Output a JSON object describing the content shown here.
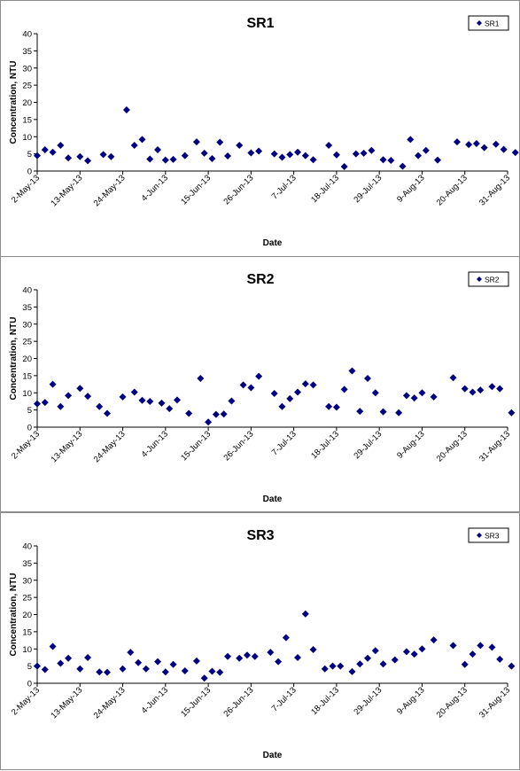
{
  "chart_data": [
    {
      "type": "scatter",
      "title": "SR1",
      "xlabel": "Date",
      "ylabel": "Concentration, NTU",
      "ylim": [
        0,
        40
      ],
      "yticks": [
        "0",
        "5",
        "10",
        "15",
        "20",
        "25",
        "30",
        "35",
        "40"
      ],
      "xlim": [
        "2013-05-02",
        "2013-08-31"
      ],
      "xtick_labels": [
        "2-May-13",
        "13-May-13",
        "24-May-13",
        "4-Jun-13",
        "15-Jun-13",
        "26-Jun-13",
        "7-Jul-13",
        "18-Jul-13",
        "29-Jul-13",
        "9-Aug-13",
        "20-Aug-13",
        "31-Aug-13"
      ],
      "grid": false,
      "legend": "top-right",
      "marker_color": "#000080",
      "series": [
        {
          "name": "SR1",
          "x": [
            "2013-05-02",
            "2013-05-04",
            "2013-05-06",
            "2013-05-08",
            "2013-05-10",
            "2013-05-13",
            "2013-05-15",
            "2013-05-19",
            "2013-05-21",
            "2013-05-25",
            "2013-05-27",
            "2013-05-29",
            "2013-05-31",
            "2013-06-02",
            "2013-06-04",
            "2013-06-06",
            "2013-06-09",
            "2013-06-12",
            "2013-06-14",
            "2013-06-16",
            "2013-06-18",
            "2013-06-20",
            "2013-06-23",
            "2013-06-26",
            "2013-06-28",
            "2013-07-02",
            "2013-07-04",
            "2013-07-06",
            "2013-07-08",
            "2013-07-10",
            "2013-07-12",
            "2013-07-16",
            "2013-07-18",
            "2013-07-20",
            "2013-07-23",
            "2013-07-25",
            "2013-07-27",
            "2013-07-30",
            "2013-08-01",
            "2013-08-04",
            "2013-08-06",
            "2013-08-08",
            "2013-08-10",
            "2013-08-13",
            "2013-08-18",
            "2013-08-21",
            "2013-08-23",
            "2013-08-25",
            "2013-08-28",
            "2013-08-30",
            "2013-09-02"
          ],
          "y": [
            4.5,
            6.2,
            5.5,
            7.5,
            3.8,
            4.2,
            3.0,
            4.8,
            4.2,
            17.8,
            7.5,
            9.2,
            3.5,
            6.2,
            3.2,
            3.4,
            4.5,
            8.5,
            5.2,
            3.6,
            8.4,
            4.4,
            7.5,
            5.3,
            5.8,
            5.0,
            4.0,
            4.8,
            5.5,
            4.5,
            3.3,
            7.5,
            4.7,
            1.3,
            5.0,
            5.2,
            6.0,
            3.3,
            3.1,
            1.4,
            9.2,
            4.5,
            6.0,
            3.2,
            8.5,
            7.7,
            8.0,
            6.8,
            7.8,
            6.3,
            5.4
          ]
        }
      ]
    },
    {
      "type": "scatter",
      "title": "SR2",
      "xlabel": "Date",
      "ylabel": "Concentration, NTU",
      "ylim": [
        0,
        40
      ],
      "yticks": [
        "0",
        "5",
        "10",
        "15",
        "20",
        "25",
        "30",
        "35",
        "40"
      ],
      "xlim": [
        "2013-05-02",
        "2013-08-31"
      ],
      "xtick_labels": [
        "2-May-13",
        "13-May-13",
        "24-May-13",
        "4-Jun-13",
        "15-Jun-13",
        "26-Jun-13",
        "7-Jul-13",
        "18-Jul-13",
        "29-Jul-13",
        "9-Aug-13",
        "20-Aug-13",
        "31-Aug-13"
      ],
      "grid": false,
      "legend": "top-right",
      "marker_color": "#000080",
      "series": [
        {
          "name": "SR2",
          "x": [
            "2013-05-02",
            "2013-05-04",
            "2013-05-06",
            "2013-05-08",
            "2013-05-10",
            "2013-05-13",
            "2013-05-15",
            "2013-05-18",
            "2013-05-20",
            "2013-05-24",
            "2013-05-27",
            "2013-05-29",
            "2013-05-31",
            "2013-06-03",
            "2013-06-05",
            "2013-06-07",
            "2013-06-10",
            "2013-06-13",
            "2013-06-15",
            "2013-06-17",
            "2013-06-19",
            "2013-06-21",
            "2013-06-24",
            "2013-06-26",
            "2013-06-28",
            "2013-07-02",
            "2013-07-04",
            "2013-07-06",
            "2013-07-08",
            "2013-07-10",
            "2013-07-12",
            "2013-07-16",
            "2013-07-18",
            "2013-07-20",
            "2013-07-22",
            "2013-07-24",
            "2013-07-26",
            "2013-07-28",
            "2013-07-30",
            "2013-08-03",
            "2013-08-05",
            "2013-08-07",
            "2013-08-09",
            "2013-08-12",
            "2013-08-17",
            "2013-08-20",
            "2013-08-22",
            "2013-08-24",
            "2013-08-27",
            "2013-08-29",
            "2013-09-01"
          ],
          "y": [
            6.8,
            7.2,
            12.5,
            6.0,
            9.2,
            11.3,
            9.0,
            6.0,
            4.0,
            8.8,
            10.2,
            7.8,
            7.5,
            7.0,
            5.4,
            7.9,
            4.0,
            14.2,
            1.5,
            3.7,
            3.8,
            7.6,
            12.3,
            11.5,
            14.8,
            9.8,
            6.0,
            8.3,
            10.2,
            12.6,
            12.3,
            6.0,
            5.8,
            11.0,
            16.4,
            4.6,
            14.2,
            10.0,
            4.5,
            4.2,
            9.2,
            8.5,
            10.0,
            8.8,
            14.4,
            11.2,
            10.2,
            10.8,
            11.8,
            11.2,
            4.2
          ]
        }
      ]
    },
    {
      "type": "scatter",
      "title": "SR3",
      "xlabel": "Date",
      "ylabel": "Concentration, NTU",
      "ylim": [
        0,
        40
      ],
      "yticks": [
        "0",
        "5",
        "10",
        "15",
        "20",
        "25",
        "30",
        "35",
        "40"
      ],
      "xlim": [
        "2013-05-02",
        "2013-08-31"
      ],
      "xtick_labels": [
        "2-May-13",
        "13-May-13",
        "24-May-13",
        "4-Jun-13",
        "15-Jun-13",
        "26-Jun-13",
        "7-Jul-13",
        "18-Jul-13",
        "29-Jul-13",
        "9-Aug-13",
        "20-Aug-13",
        "31-Aug-13"
      ],
      "grid": false,
      "legend": "top-right",
      "marker_color": "#000080",
      "series": [
        {
          "name": "SR3",
          "x": [
            "2013-05-02",
            "2013-05-04",
            "2013-05-06",
            "2013-05-08",
            "2013-05-10",
            "2013-05-13",
            "2013-05-15",
            "2013-05-18",
            "2013-05-20",
            "2013-05-24",
            "2013-05-26",
            "2013-05-28",
            "2013-05-30",
            "2013-06-02",
            "2013-06-04",
            "2013-06-06",
            "2013-06-09",
            "2013-06-12",
            "2013-06-14",
            "2013-06-16",
            "2013-06-18",
            "2013-06-20",
            "2013-06-23",
            "2013-06-25",
            "2013-06-27",
            "2013-07-01",
            "2013-07-03",
            "2013-07-05",
            "2013-07-08",
            "2013-07-10",
            "2013-07-12",
            "2013-07-15",
            "2013-07-17",
            "2013-07-19",
            "2013-07-22",
            "2013-07-24",
            "2013-07-26",
            "2013-07-28",
            "2013-07-30",
            "2013-08-02",
            "2013-08-05",
            "2013-08-07",
            "2013-08-09",
            "2013-08-12",
            "2013-08-17",
            "2013-08-20",
            "2013-08-22",
            "2013-08-24",
            "2013-08-27",
            "2013-08-29",
            "2013-09-01"
          ],
          "y": [
            5.0,
            4.0,
            10.7,
            5.8,
            7.3,
            4.2,
            7.5,
            3.3,
            3.2,
            4.2,
            9.0,
            6.0,
            4.2,
            6.3,
            3.3,
            5.5,
            3.6,
            6.5,
            1.5,
            3.5,
            3.2,
            7.8,
            7.3,
            8.2,
            7.8,
            9.0,
            6.3,
            13.3,
            7.5,
            20.2,
            9.8,
            4.2,
            5.0,
            5.0,
            3.4,
            5.6,
            7.3,
            9.5,
            5.6,
            6.8,
            9.2,
            8.5,
            10.0,
            12.6,
            11.0,
            5.5,
            8.5,
            11.0,
            10.5,
            7.0,
            5.0
          ]
        }
      ]
    }
  ]
}
